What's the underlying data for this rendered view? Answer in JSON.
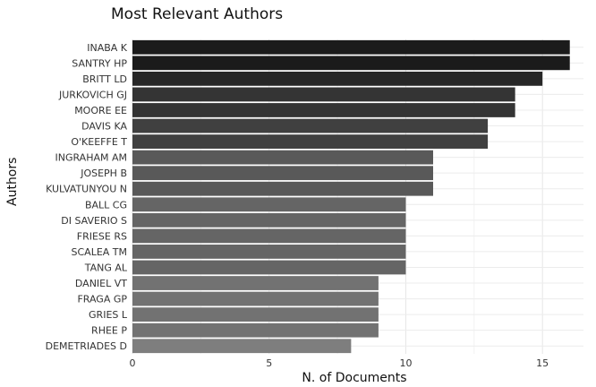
{
  "chart_data": {
    "type": "bar",
    "orientation": "horizontal",
    "title": "Most Relevant Authors",
    "xlabel": "N. of Documents",
    "ylabel": "Authors",
    "categories": [
      "INABA K",
      "SANTRY HP",
      "BRITT LD",
      "JURKOVICH GJ",
      "MOORE EE",
      "DAVIS KA",
      "O'KEEFFE T",
      "INGRAHAM AM",
      "JOSEPH B",
      "KULVATUNYOU N",
      "BALL CG",
      "DI SAVERIO S",
      "FRIESE RS",
      "SCALEA TM",
      "TANG AL",
      "DANIEL VT",
      "FRAGA GP",
      "GRIES L",
      "RHEE P",
      "DEMETRIADES D"
    ],
    "values": [
      16,
      16,
      15,
      14,
      14,
      13,
      13,
      11,
      11,
      11,
      10,
      10,
      10,
      10,
      10,
      9,
      9,
      9,
      9,
      8
    ],
    "xlim": [
      0,
      16.5
    ],
    "xticks": [
      0,
      5,
      10,
      15
    ],
    "xtick_labels": [
      "0",
      "5",
      "10",
      "15"
    ],
    "grid": true,
    "bar_color_scale": [
      "#1b1b1b",
      "#7e7e7e"
    ]
  }
}
